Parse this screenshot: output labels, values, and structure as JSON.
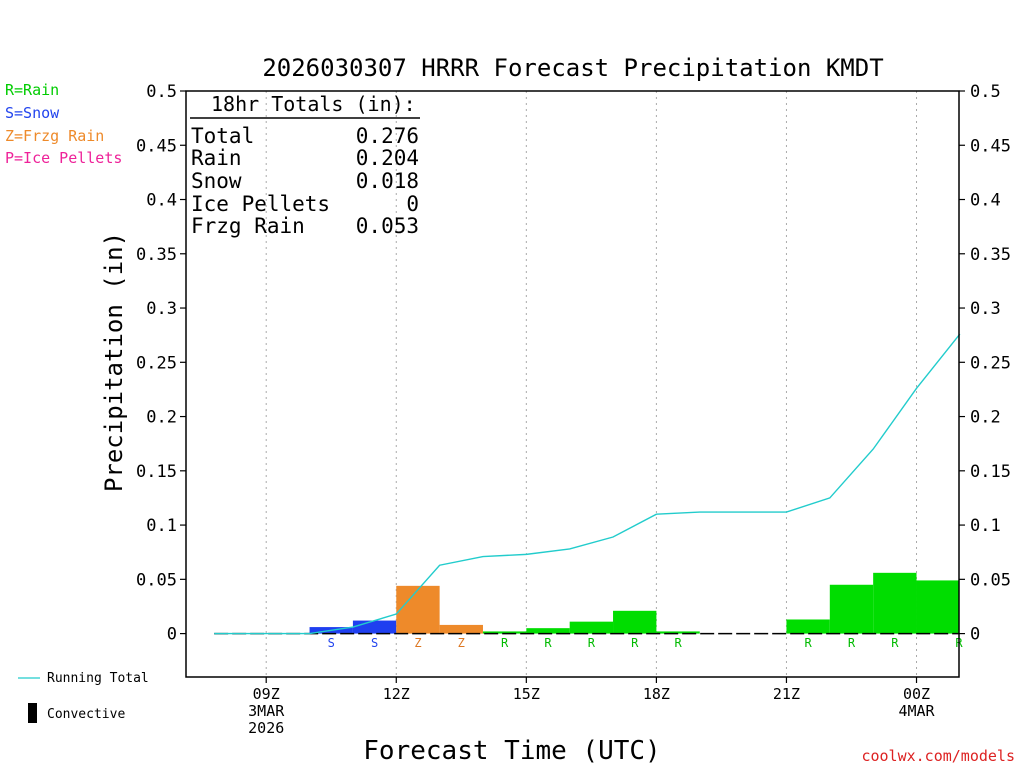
{
  "credit": "coolwx.com/models",
  "legend_left": [
    {
      "text": "R=Rain",
      "color": "#00cc00"
    },
    {
      "text": "S=Snow",
      "color": "#2244ee"
    },
    {
      "text": "Z=Frzg Rain",
      "color": "#ee8a2a"
    },
    {
      "text": "P=Ice Pellets",
      "color": "#ee2299"
    }
  ],
  "legend_bottom": {
    "running_total": "Running Total",
    "convective": "Convective"
  },
  "totals": {
    "title": "18hr Totals (in):",
    "rows": [
      {
        "label": "Total",
        "value": "0.276"
      },
      {
        "label": "Rain",
        "value": "0.204"
      },
      {
        "label": "Snow",
        "value": "0.018"
      },
      {
        "label": "Ice Pellets",
        "value": "0"
      },
      {
        "label": "Frzg Rain",
        "value": "0.053"
      }
    ]
  },
  "colors": {
    "rain": "#00dd00",
    "snow": "#1f3ff0",
    "frzg": "#ee8a2a",
    "running_total": "#22cccc",
    "axis": "#000000",
    "grid": "#aaaaaa",
    "credit": "#dd2222"
  },
  "chart_data": {
    "type": "bar",
    "title": "2026030307 HRRR Forecast Precipitation KMDT",
    "xlabel": "Forecast Time (UTC)",
    "ylabel": "Precipitation (in)",
    "ylim": [
      -0.04,
      0.5
    ],
    "yticks": [
      0,
      0.05,
      0.1,
      0.15,
      0.2,
      0.25,
      0.3,
      0.35,
      0.4,
      0.45,
      0.5
    ],
    "ytick_labels": [
      "0",
      "0.05",
      "0.1",
      "0.15",
      "0.2",
      "0.25",
      "0.3",
      "0.35",
      "0.4",
      "0.45",
      "0.5"
    ],
    "xlim": [
      7.15,
      24.98
    ],
    "xticks": [
      {
        "x": 9,
        "lines": [
          "09Z",
          "3MAR",
          "2026"
        ]
      },
      {
        "x": 12,
        "lines": [
          "12Z"
        ]
      },
      {
        "x": 15,
        "lines": [
          "15Z"
        ]
      },
      {
        "x": 18,
        "lines": [
          "18Z"
        ]
      },
      {
        "x": 21,
        "lines": [
          "21Z"
        ]
      },
      {
        "x": 24,
        "lines": [
          "00Z",
          "4MAR"
        ]
      }
    ],
    "grid": "vertical dotted at x ticks",
    "hours": [
      8,
      9,
      10,
      11,
      12,
      13,
      14,
      15,
      16,
      17,
      18,
      19,
      20,
      21,
      22,
      23,
      24,
      25
    ],
    "bars": [
      0,
      0,
      0,
      0.006,
      0.012,
      0.044,
      0.008,
      0.002,
      0.005,
      0.011,
      0.021,
      0.002,
      0,
      0,
      0.013,
      0.045,
      0.056,
      0.049
    ],
    "types": [
      "",
      "",
      "",
      "S",
      "S",
      "Z",
      "Z",
      "R",
      "R",
      "R",
      "R",
      "R",
      "",
      "",
      "R",
      "R",
      "R",
      "R"
    ],
    "running_total": {
      "x": [
        7.8,
        9,
        10,
        11,
        12,
        13,
        14,
        15,
        16,
        17,
        18,
        19,
        20,
        21,
        22,
        23,
        24,
        25
      ],
      "y": [
        0,
        0,
        0,
        0.006,
        0.018,
        0.063,
        0.071,
        0.073,
        0.078,
        0.089,
        0.11,
        0.112,
        0.112,
        0.112,
        0.125,
        0.17,
        0.226,
        0.276
      ]
    }
  }
}
